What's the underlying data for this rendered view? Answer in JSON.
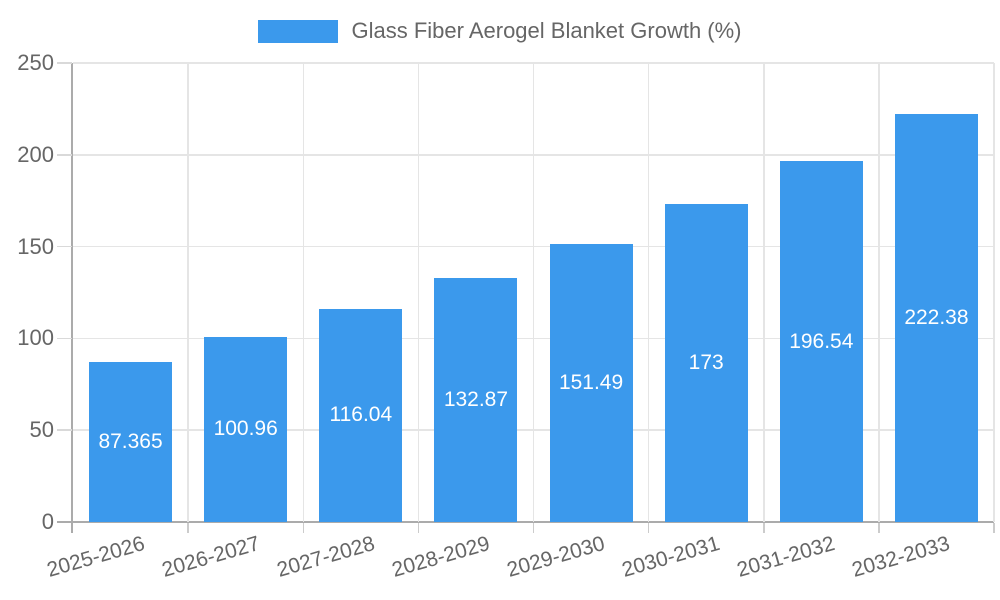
{
  "chart_data": {
    "type": "bar",
    "series_label": "Glass Fiber Aerogel Blanket Growth (%)",
    "categories": [
      "2025-2026",
      "2026-2027",
      "2027-2028",
      "2028-2029",
      "2029-2030",
      "2030-2031",
      "2031-2032",
      "2032-2033"
    ],
    "values": [
      87.365,
      100.96,
      116.04,
      132.87,
      151.49,
      173,
      196.54,
      222.38
    ],
    "value_labels": [
      "87.365",
      "100.96",
      "116.04",
      "132.87",
      "151.49",
      "173",
      "196.54",
      "222.38"
    ],
    "title": "Glass Fiber Aerogel Blanket Growth (%)",
    "xlabel": "",
    "ylabel": "",
    "ylim": [
      0,
      250
    ],
    "yticks": [
      0,
      50,
      100,
      150,
      200,
      250
    ],
    "grid": "on",
    "legend_position": "top-center",
    "colors": {
      "bar": "#3b99ec",
      "grid": "#e5e5e5",
      "axis": "#ababab",
      "tick": "#cccccc",
      "text": "#666666",
      "value_label": "#ffffff",
      "background": "#ffffff"
    }
  }
}
